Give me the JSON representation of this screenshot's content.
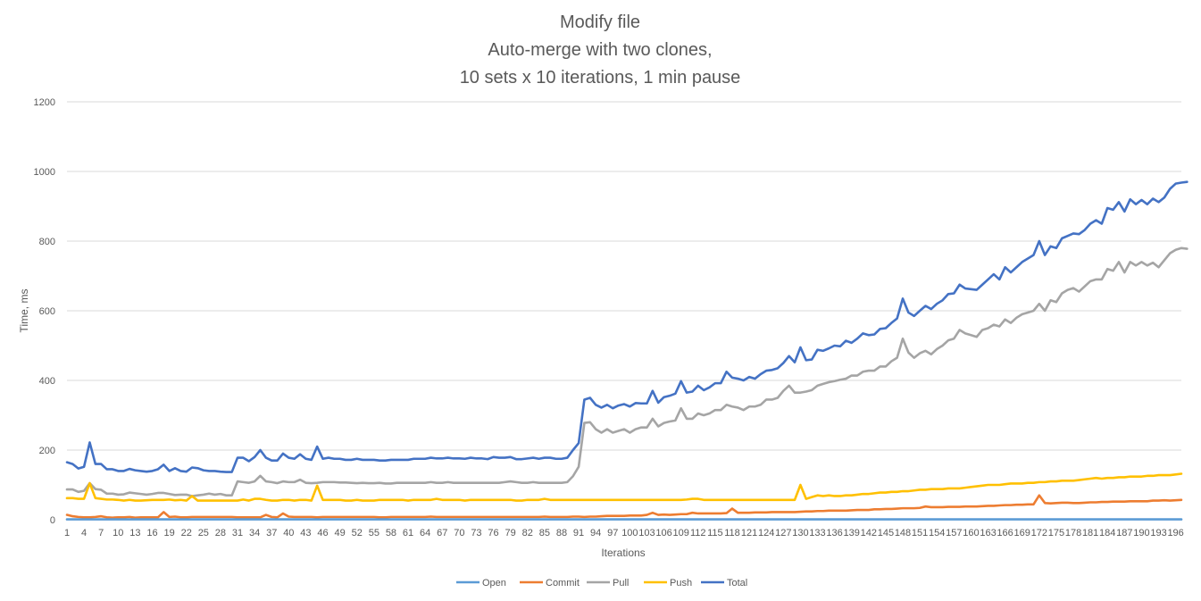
{
  "chart_data": {
    "type": "line",
    "title_lines": [
      "Modify file",
      "Auto-merge with two clones,",
      "10 sets x 10 iterations, 1 min pause"
    ],
    "xlabel": "Iterations",
    "ylabel": "Time, ms",
    "ylim": [
      0,
      1200
    ],
    "yticks": [
      0,
      200,
      400,
      600,
      800,
      1000,
      1200
    ],
    "x_start": 1,
    "x_end": 197,
    "x_tick_labels": [
      "1",
      "4",
      "7",
      "10",
      "13",
      "16",
      "19",
      "22",
      "25",
      "28",
      "31",
      "34",
      "37",
      "40",
      "43",
      "46",
      "49",
      "52",
      "55",
      "58",
      "61",
      "64",
      "67",
      "70",
      "73",
      "76",
      "79",
      "82",
      "85",
      "88",
      "91",
      "94",
      "97",
      "100",
      "103",
      "106",
      "109",
      "112",
      "115",
      "118",
      "121",
      "124",
      "127",
      "130",
      "133",
      "136",
      "139",
      "142",
      "145",
      "148",
      "151",
      "154",
      "157",
      "160",
      "163",
      "166",
      "169",
      "172",
      "175",
      "178",
      "181",
      "184",
      "187",
      "190",
      "193",
      "196"
    ],
    "grid": "horizontal",
    "legend_position": "bottom",
    "series": [
      {
        "name": "Open",
        "color": "#5b9bd5",
        "values": [
          1,
          1,
          1,
          1,
          1,
          1,
          1,
          1,
          1,
          1,
          1,
          1,
          1,
          1,
          1,
          1,
          1,
          1,
          1,
          1,
          1,
          1,
          1,
          1,
          1,
          1,
          1,
          1,
          1,
          1,
          1,
          1,
          1,
          1,
          1,
          1,
          1,
          1,
          1,
          1,
          1,
          1,
          1,
          1,
          1,
          1,
          1,
          1,
          1,
          1,
          1,
          1,
          1,
          1,
          1,
          1,
          1,
          1,
          1,
          1,
          1,
          1,
          1,
          1,
          1,
          1,
          1,
          1,
          1,
          1,
          1,
          1,
          1,
          1,
          1,
          1,
          1,
          1,
          1,
          1,
          1,
          1,
          1,
          1,
          1,
          1,
          1,
          1,
          1,
          1,
          1,
          1,
          1,
          1,
          1,
          1,
          1,
          1,
          1,
          1,
          1,
          1,
          1,
          1,
          1,
          1,
          1,
          1,
          1,
          1,
          1,
          1,
          1,
          1,
          1,
          1,
          1,
          1,
          1,
          1,
          1,
          1,
          1,
          1,
          1,
          1,
          1,
          1,
          1,
          1,
          1,
          1,
          1,
          1,
          1,
          1,
          1,
          1,
          1,
          1,
          1,
          1,
          1,
          1,
          1,
          1,
          1,
          1,
          1,
          1,
          1,
          1,
          1,
          1,
          1,
          1,
          1,
          1,
          1,
          1,
          1,
          1,
          1,
          1,
          1,
          1,
          1,
          1,
          1,
          1,
          1,
          1,
          1,
          1,
          1,
          1,
          1,
          1,
          1,
          1,
          1,
          1,
          1,
          1,
          1,
          1,
          1,
          1,
          1,
          1,
          1,
          1,
          1,
          1,
          1,
          1,
          1
        ]
      },
      {
        "name": "Commit",
        "color": "#ed7d31",
        "values": [
          14,
          10,
          8,
          7,
          7,
          8,
          10,
          7,
          6,
          7,
          7,
          8,
          6,
          7,
          7,
          7,
          7,
          22,
          8,
          9,
          7,
          7,
          8,
          8,
          8,
          8,
          8,
          8,
          8,
          8,
          7,
          7,
          7,
          7,
          7,
          14,
          8,
          7,
          18,
          9,
          8,
          8,
          8,
          8,
          7,
          8,
          8,
          8,
          8,
          8,
          8,
          8,
          8,
          8,
          8,
          7,
          7,
          8,
          8,
          8,
          8,
          8,
          8,
          8,
          9,
          8,
          8,
          8,
          8,
          8,
          8,
          8,
          8,
          8,
          8,
          8,
          8,
          8,
          8,
          8,
          8,
          8,
          8,
          8,
          9,
          8,
          8,
          8,
          8,
          9,
          9,
          8,
          9,
          9,
          10,
          11,
          11,
          11,
          11,
          12,
          12,
          12,
          14,
          20,
          14,
          15,
          14,
          15,
          16,
          16,
          20,
          18,
          18,
          18,
          18,
          18,
          19,
          32,
          20,
          20,
          20,
          21,
          21,
          21,
          22,
          22,
          22,
          22,
          22,
          23,
          24,
          24,
          25,
          25,
          26,
          26,
          26,
          26,
          27,
          28,
          28,
          28,
          30,
          30,
          31,
          31,
          32,
          33,
          33,
          33,
          34,
          38,
          36,
          36,
          36,
          37,
          37,
          37,
          38,
          38,
          38,
          39,
          40,
          40,
          41,
          42,
          42,
          43,
          43,
          44,
          44,
          70,
          48,
          47,
          48,
          49,
          49,
          48,
          48,
          49,
          50,
          50,
          51,
          51,
          52,
          52,
          52,
          53,
          53,
          53,
          53,
          55,
          55,
          56,
          55,
          56,
          57
        ]
      },
      {
        "name": "Pull",
        "color": "#a5a5a5",
        "values": [
          87,
          87,
          80,
          83,
          105,
          88,
          86,
          75,
          75,
          72,
          73,
          78,
          76,
          74,
          72,
          74,
          77,
          77,
          74,
          71,
          72,
          72,
          68,
          70,
          72,
          75,
          72,
          74,
          70,
          70,
          110,
          108,
          106,
          110,
          126,
          110,
          108,
          105,
          110,
          108,
          108,
          115,
          106,
          105,
          106,
          108,
          108,
          108,
          107,
          107,
          106,
          105,
          106,
          105,
          105,
          106,
          104,
          104,
          106,
          106,
          106,
          106,
          106,
          106,
          108,
          106,
          106,
          108,
          106,
          106,
          106,
          106,
          106,
          106,
          106,
          106,
          106,
          108,
          110,
          108,
          106,
          106,
          108,
          106,
          106,
          106,
          106,
          106,
          108,
          125,
          152,
          278,
          280,
          260,
          250,
          260,
          250,
          255,
          260,
          250,
          260,
          265,
          265,
          290,
          268,
          278,
          282,
          285,
          320,
          290,
          290,
          305,
          300,
          305,
          315,
          315,
          330,
          325,
          322,
          315,
          325,
          325,
          330,
          345,
          345,
          350,
          370,
          385,
          365,
          365,
          368,
          372,
          385,
          390,
          395,
          398,
          402,
          405,
          414,
          414,
          425,
          428,
          428,
          440,
          440,
          455,
          465,
          520,
          480,
          465,
          478,
          485,
          475,
          490,
          500,
          515,
          520,
          545,
          535,
          530,
          525,
          545,
          550,
          560,
          555,
          575,
          565,
          580,
          590,
          595,
          600,
          620,
          600,
          630,
          625,
          650,
          660,
          665,
          655,
          670,
          685,
          690,
          690,
          720,
          715,
          740,
          710,
          740,
          730,
          740,
          730,
          738,
          725,
          745,
          765,
          775,
          780,
          778
        ]
      },
      {
        "name": "Push",
        "color": "#ffc000",
        "values": [
          62,
          62,
          60,
          60,
          105,
          62,
          60,
          58,
          58,
          57,
          55,
          57,
          55,
          55,
          56,
          57,
          57,
          57,
          58,
          56,
          57,
          55,
          68,
          55,
          55,
          55,
          55,
          55,
          55,
          55,
          55,
          58,
          55,
          60,
          60,
          57,
          55,
          55,
          57,
          57,
          55,
          57,
          57,
          55,
          98,
          57,
          57,
          57,
          57,
          55,
          55,
          57,
          55,
          55,
          55,
          57,
          57,
          57,
          57,
          57,
          55,
          57,
          57,
          57,
          57,
          60,
          57,
          57,
          57,
          57,
          55,
          57,
          57,
          57,
          57,
          57,
          57,
          57,
          57,
          55,
          55,
          57,
          57,
          57,
          60,
          57,
          57,
          57,
          57,
          57,
          57,
          57,
          57,
          57,
          57,
          57,
          57,
          57,
          57,
          57,
          57,
          57,
          57,
          57,
          57,
          57,
          57,
          57,
          57,
          58,
          60,
          60,
          57,
          57,
          57,
          57,
          57,
          57,
          57,
          57,
          57,
          57,
          57,
          57,
          57,
          57,
          57,
          57,
          57,
          100,
          60,
          65,
          70,
          68,
          70,
          68,
          68,
          70,
          70,
          72,
          74,
          74,
          76,
          78,
          78,
          80,
          80,
          82,
          82,
          84,
          86,
          86,
          88,
          88,
          88,
          90,
          90,
          90,
          92,
          94,
          96,
          98,
          100,
          100,
          100,
          102,
          104,
          104,
          104,
          106,
          106,
          108,
          108,
          110,
          110,
          112,
          112,
          112,
          114,
          116,
          118,
          120,
          118,
          120,
          120,
          122,
          122,
          124,
          124,
          124,
          126,
          126,
          128,
          128,
          128,
          130,
          132
        ]
      },
      {
        "name": "Total",
        "color": "#4472c4",
        "values": [
          165,
          160,
          147,
          152,
          222,
          160,
          160,
          145,
          145,
          140,
          140,
          146,
          142,
          140,
          138,
          140,
          145,
          158,
          140,
          148,
          140,
          138,
          150,
          148,
          142,
          140,
          140,
          138,
          137,
          137,
          178,
          178,
          168,
          180,
          200,
          178,
          170,
          170,
          190,
          178,
          175,
          188,
          175,
          172,
          210,
          175,
          178,
          175,
          175,
          172,
          172,
          175,
          172,
          172,
          172,
          170,
          170,
          172,
          172,
          172,
          172,
          175,
          175,
          175,
          178,
          176,
          176,
          178,
          176,
          176,
          175,
          178,
          176,
          176,
          174,
          180,
          178,
          178,
          180,
          174,
          174,
          176,
          178,
          175,
          178,
          178,
          175,
          175,
          178,
          200,
          220,
          345,
          350,
          330,
          322,
          330,
          320,
          328,
          332,
          325,
          335,
          334,
          334,
          370,
          336,
          352,
          356,
          362,
          398,
          365,
          368,
          385,
          372,
          380,
          392,
          392,
          425,
          408,
          405,
          400,
          410,
          405,
          418,
          428,
          430,
          435,
          450,
          470,
          452,
          495,
          458,
          460,
          488,
          485,
          492,
          500,
          498,
          514,
          508,
          520,
          535,
          530,
          532,
          548,
          550,
          565,
          578,
          635,
          595,
          585,
          600,
          614,
          605,
          620,
          630,
          648,
          650,
          675,
          664,
          662,
          660,
          675,
          690,
          705,
          690,
          725,
          710,
          725,
          740,
          750,
          760,
          800,
          760,
          785,
          780,
          808,
          815,
          822,
          820,
          832,
          850,
          860,
          850,
          895,
          890,
          912,
          885,
          920,
          906,
          918,
          906,
          922,
          912,
          925,
          950,
          965,
          968,
          970
        ]
      }
    ]
  }
}
